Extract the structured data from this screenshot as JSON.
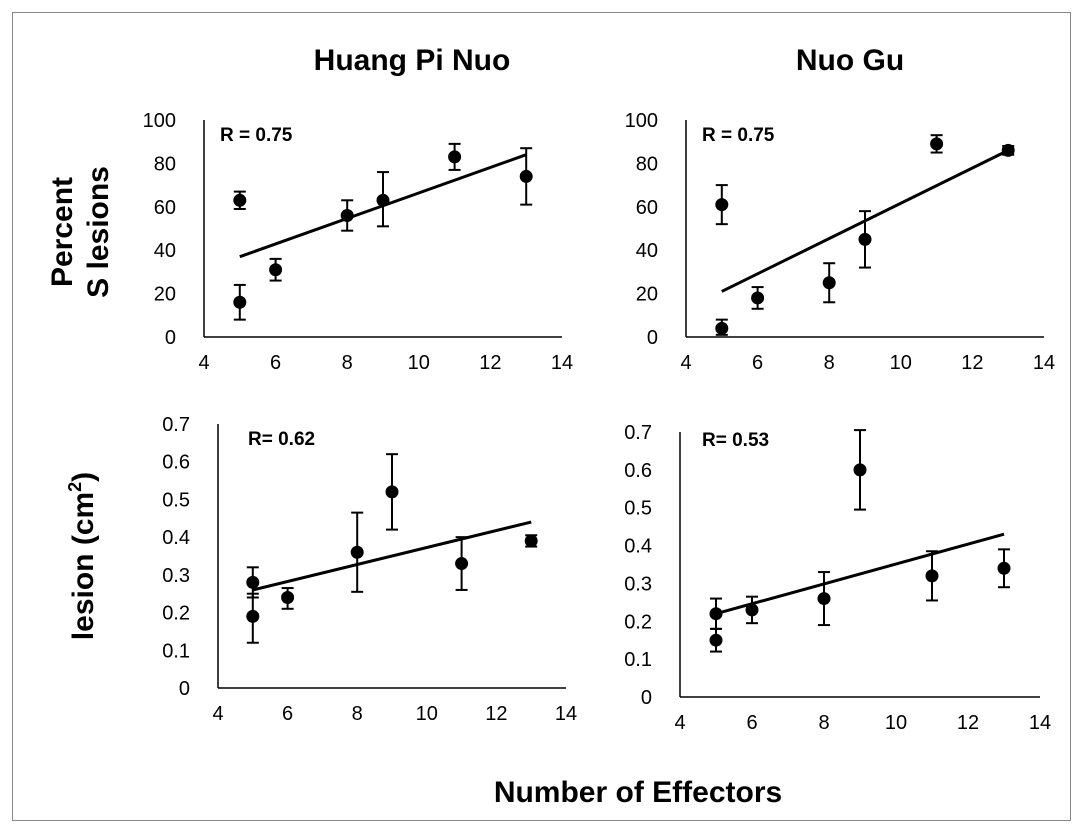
{
  "figure": {
    "col_titles": [
      "Huang Pi Nuo",
      "Nuo Gu"
    ],
    "row_labels": {
      "top_line1": "Percent",
      "top_line2": "S lesions",
      "bottom": "lesion  (cm",
      "bottom_sup": "2",
      "bottom_close": ")"
    },
    "xlabel": "Number of Effectors"
  },
  "chart_data": [
    {
      "type": "scatter",
      "title": "Huang Pi Nuo",
      "xlabel": "Number of Effectors",
      "ylabel": "Percent S lesions",
      "annotation": "R = 0.75",
      "xlim": [
        4,
        14
      ],
      "ylim": [
        0,
        100
      ],
      "xticks": [
        4,
        6,
        8,
        10,
        12,
        14
      ],
      "xtick_labels": [
        "4",
        "6",
        "8",
        "10",
        "12",
        "14"
      ],
      "yticks": [
        0,
        20,
        40,
        60,
        80,
        100
      ],
      "ytick_labels": [
        "0",
        "20",
        "40",
        "60",
        "80",
        "100"
      ],
      "points": [
        {
          "x": 5,
          "y": 63,
          "err_low": 4,
          "err_high": 4
        },
        {
          "x": 5,
          "y": 16,
          "err_low": 8,
          "err_high": 8
        },
        {
          "x": 6,
          "y": 31,
          "err_low": 5,
          "err_high": 5
        },
        {
          "x": 8,
          "y": 56,
          "err_low": 7,
          "err_high": 7
        },
        {
          "x": 9,
          "y": 63,
          "err_low": 12,
          "err_high": 13
        },
        {
          "x": 11,
          "y": 83,
          "err_low": 6,
          "err_high": 6
        },
        {
          "x": 13,
          "y": 74,
          "err_low": 13,
          "err_high": 13
        }
      ],
      "trendline": {
        "x": [
          5,
          13
        ],
        "y": [
          37,
          84
        ]
      }
    },
    {
      "type": "scatter",
      "title": "Nuo Gu",
      "xlabel": "Number of Effectors",
      "ylabel": "Percent S lesions",
      "annotation": "R = 0.75",
      "xlim": [
        4,
        14
      ],
      "ylim": [
        0,
        100
      ],
      "xticks": [
        4,
        6,
        8,
        10,
        12,
        14
      ],
      "xtick_labels": [
        "4",
        "6",
        "8",
        "10",
        "12",
        "14"
      ],
      "yticks": [
        0,
        20,
        40,
        60,
        80,
        100
      ],
      "ytick_labels": [
        "0",
        "20",
        "40",
        "60",
        "80",
        "100"
      ],
      "points": [
        {
          "x": 5,
          "y": 61,
          "err_low": 9,
          "err_high": 9
        },
        {
          "x": 5,
          "y": 4,
          "err_low": 3,
          "err_high": 4
        },
        {
          "x": 6,
          "y": 18,
          "err_low": 5,
          "err_high": 5
        },
        {
          "x": 8,
          "y": 25,
          "err_low": 9,
          "err_high": 9
        },
        {
          "x": 9,
          "y": 45,
          "err_low": 13,
          "err_high": 13
        },
        {
          "x": 11,
          "y": 89,
          "err_low": 4,
          "err_high": 4
        },
        {
          "x": 13,
          "y": 86,
          "err_low": 2,
          "err_high": 2
        }
      ],
      "trendline": {
        "x": [
          5,
          13
        ],
        "y": [
          21,
          86
        ]
      }
    },
    {
      "type": "scatter",
      "title": "Huang Pi Nuo",
      "xlabel": "Number of Effectors",
      "ylabel": "lesion (cm2)",
      "annotation": "R= 0.62",
      "xlim": [
        4,
        14
      ],
      "ylim": [
        0,
        0.7
      ],
      "xticks": [
        4,
        6,
        8,
        10,
        12,
        14
      ],
      "xtick_labels": [
        "4",
        "6",
        "8",
        "10",
        "12",
        "14"
      ],
      "yticks": [
        0,
        0.1,
        0.2,
        0.3,
        0.4,
        0.5,
        0.6,
        0.7
      ],
      "ytick_labels": [
        "0",
        "0.1",
        "0.2",
        "0.3",
        "0.4",
        "0.5",
        "0.6",
        "0.7"
      ],
      "points": [
        {
          "x": 5,
          "y": 0.28,
          "err_low": 0.04,
          "err_high": 0.04
        },
        {
          "x": 5,
          "y": 0.19,
          "err_low": 0.07,
          "err_high": 0.06
        },
        {
          "x": 6,
          "y": 0.24,
          "err_low": 0.03,
          "err_high": 0.025
        },
        {
          "x": 8,
          "y": 0.36,
          "err_low": 0.105,
          "err_high": 0.105
        },
        {
          "x": 9,
          "y": 0.52,
          "err_low": 0.1,
          "err_high": 0.1
        },
        {
          "x": 11,
          "y": 0.33,
          "err_low": 0.07,
          "err_high": 0.07
        },
        {
          "x": 13,
          "y": 0.39,
          "err_low": 0.015,
          "err_high": 0.015
        }
      ],
      "trendline": {
        "x": [
          5,
          13
        ],
        "y": [
          0.26,
          0.44
        ]
      }
    },
    {
      "type": "scatter",
      "title": "Nuo Gu",
      "xlabel": "Number of Effectors",
      "ylabel": "lesion (cm2)",
      "annotation": "R= 0.53",
      "xlim": [
        4,
        14
      ],
      "ylim": [
        0,
        0.7
      ],
      "xticks": [
        4,
        6,
        8,
        10,
        12,
        14
      ],
      "xtick_labels": [
        "4",
        "6",
        "8",
        "10",
        "12",
        "14"
      ],
      "yticks": [
        0,
        0.1,
        0.2,
        0.3,
        0.4,
        0.5,
        0.6,
        0.7
      ],
      "ytick_labels": [
        "0",
        "0.1",
        "0.2",
        "0.3",
        "0.4",
        "0.5",
        "0.6",
        "0.7"
      ],
      "points": [
        {
          "x": 5,
          "y": 0.22,
          "err_low": 0.04,
          "err_high": 0.04
        },
        {
          "x": 5,
          "y": 0.15,
          "err_low": 0.03,
          "err_high": 0.03
        },
        {
          "x": 6,
          "y": 0.23,
          "err_low": 0.035,
          "err_high": 0.035
        },
        {
          "x": 8,
          "y": 0.26,
          "err_low": 0.07,
          "err_high": 0.07
        },
        {
          "x": 9,
          "y": 0.6,
          "err_low": 0.105,
          "err_high": 0.105
        },
        {
          "x": 11,
          "y": 0.32,
          "err_low": 0.065,
          "err_high": 0.065
        },
        {
          "x": 13,
          "y": 0.34,
          "err_low": 0.05,
          "err_high": 0.05
        }
      ],
      "trendline": {
        "x": [
          5,
          13
        ],
        "y": [
          0.22,
          0.43
        ]
      }
    }
  ]
}
